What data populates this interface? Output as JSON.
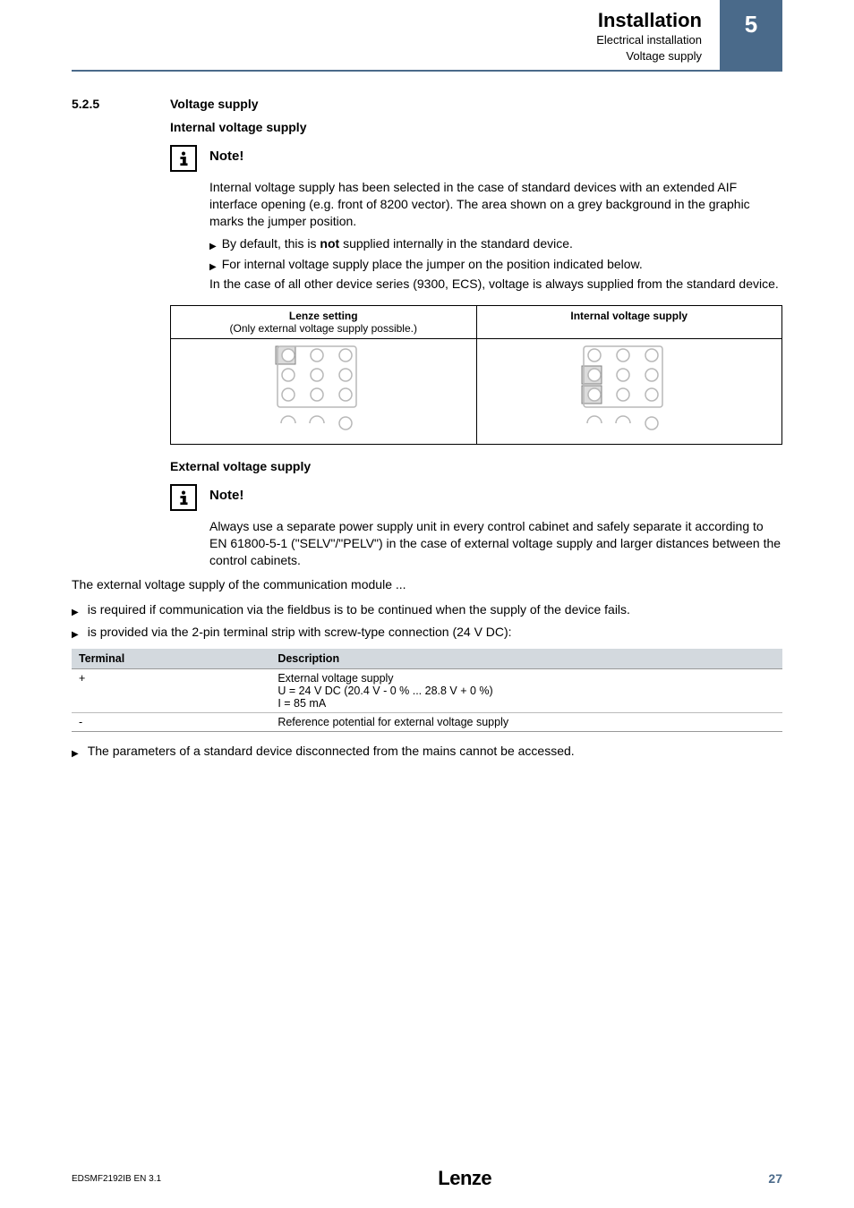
{
  "header": {
    "title": "Installation",
    "sub1": "Electrical installation",
    "sub2": "Voltage supply",
    "chapter": "5"
  },
  "section": {
    "num": "5.2.5",
    "title": "Voltage supply"
  },
  "internal": {
    "heading": "Internal voltage supply",
    "note_label": "Note!",
    "p1": "Internal voltage supply has been selected in the case of standard devices with an extended AIF interface opening (e.g. front of 8200 vector). The area shown on a grey background in the graphic marks the jumper position.",
    "b1a": "By default, this is ",
    "b1_not": "not",
    "b1b": " supplied internally in the standard device.",
    "b2": "For internal voltage supply place the jumper on the position indicated below.",
    "p2": "In the case of all other device series (9300, ECS), voltage is always supplied from the standard device."
  },
  "jumper": {
    "left_title": "Lenze setting",
    "left_sub": "(Only external voltage supply possible.)",
    "right_title": "Internal  voltage supply",
    "left_highlight_rows": [
      0
    ],
    "right_highlight_rows": [
      1,
      2
    ],
    "colors": {
      "stroke": "#b8b8b8",
      "highlight_fill": "#dcdcdc",
      "highlight_stroke": "#808080",
      "bg": "#ffffff"
    }
  },
  "external": {
    "heading": "External voltage supply",
    "note_label": "Note!",
    "note_text": "Always use a separate power supply unit in every control cabinet and safely separate it according to EN 61800-5-1 (\"SELV\"/\"PELV\") in the case of external voltage supply and larger distances between the control cabinets.",
    "intro": "The external voltage supply of the communication module ...",
    "o1": "is required if communication via the fieldbus is to be continued when the supply of the device fails.",
    "o2": "is provided via the 2-pin terminal strip with screw-type connection (24 V DC):",
    "o3": "The parameters of a standard device disconnected from the mains cannot be accessed."
  },
  "term_table": {
    "h1": "Terminal",
    "h2": "Description",
    "rows": [
      {
        "t": "+",
        "d1": "External voltage supply",
        "d2": "U = 24 V DC (20.4 V - 0 % ... 28.8 V + 0 %)",
        "d3": "I = 85 mA"
      },
      {
        "t": "-",
        "d1": "Reference potential for external voltage supply"
      }
    ]
  },
  "footer": {
    "left": "EDSMF2192IB  EN   3.1",
    "brand": "Lenze",
    "page": "27"
  }
}
